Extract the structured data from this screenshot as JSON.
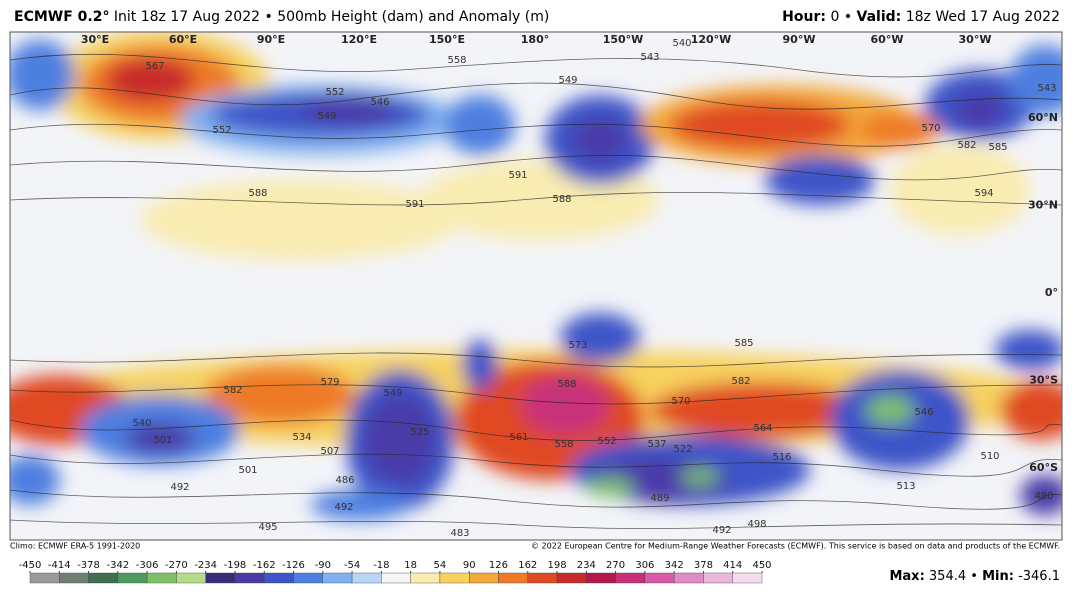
{
  "header": {
    "model": "ECMWF 0.2°",
    "init": "Init 18z 17 Aug 2022",
    "separator": "•",
    "product": "500mb Height (dam) and Anomaly (m)",
    "hour_label": "Hour:",
    "hour": "0",
    "valid_label": "Valid:",
    "valid": "18z Wed 17 Aug 2022"
  },
  "map": {
    "lon_labels": [
      "30°E",
      "60°E",
      "90°E",
      "120°E",
      "150°E",
      "180°",
      "150°W",
      "120°W",
      "90°W",
      "60°W",
      "30°W"
    ],
    "lat_labels": [
      "60°N",
      "30°N",
      "0°",
      "30°S",
      "60°S"
    ],
    "contour_labels": [
      "567",
      "558",
      "543",
      "540",
      "549",
      "552",
      "546",
      "549",
      "552",
      "591",
      "588",
      "591",
      "588",
      "573",
      "588",
      "585",
      "582",
      "579",
      "582",
      "549",
      "540",
      "501",
      "534",
      "507",
      "525",
      "561",
      "558",
      "552",
      "537",
      "522",
      "516",
      "564",
      "570",
      "492",
      "501",
      "486",
      "492",
      "495",
      "483",
      "489",
      "492",
      "498",
      "513",
      "510",
      "546",
      "480",
      "582",
      "585",
      "594",
      "570",
      "543"
    ]
  },
  "footer": {
    "climo": "Climo: ECMWF ERA-5 1991-2020",
    "credit": "© 2022 European Centre for Medium-Range Weather Forecasts (ECMWF). This service is based on data and products of the ECMWF."
  },
  "colorbar": {
    "ticks": [
      -450,
      -414,
      -378,
      -342,
      -306,
      -270,
      -234,
      -198,
      -162,
      -126,
      -90,
      -54,
      -18,
      18,
      54,
      90,
      126,
      162,
      198,
      234,
      270,
      306,
      342,
      378,
      414,
      450
    ],
    "colors": [
      "#9a9a9a",
      "#6f7f6f",
      "#3f6f4f",
      "#4f9a5f",
      "#7fbf6a",
      "#b5dc8a",
      "#3b2a7a",
      "#4a3aa8",
      "#3d55c8",
      "#4d7fe0",
      "#7fb0f0",
      "#b8d6f8",
      "#f4f4f4",
      "#f9ecb0",
      "#f7d25e",
      "#f4a83a",
      "#ee7a28",
      "#e04a22",
      "#c82a2a",
      "#b4184a",
      "#c8307a",
      "#d85aa8",
      "#e08ac6",
      "#eab8dc",
      "#f4dcee"
    ]
  },
  "stats": [
    {
      "label": "Max:",
      "value": 354.4
    },
    {
      "label": "Min:",
      "value": -346.1
    }
  ],
  "stats_separator": "•"
}
